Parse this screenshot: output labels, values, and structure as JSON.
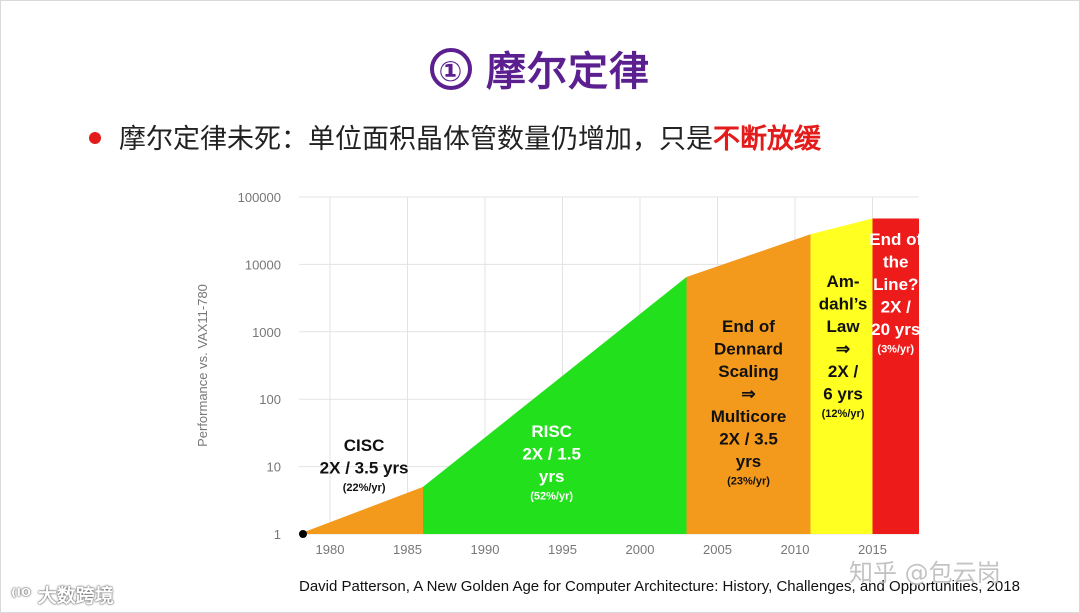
{
  "slide": {
    "number": "①",
    "title": "摩尔定律",
    "bullet_text": "摩尔定律未死：单位面积晶体管数量仍增加，只是",
    "bullet_highlight": "不断放缓",
    "source": "David Patterson, A New Golden Age for Computer Architecture: History, Challenges, and Opportunities, 2018",
    "watermark_left": "⁽ᴵᴼ 大数跨境",
    "watermark_right": "知乎 @包云岗"
  },
  "chart_data": {
    "type": "area",
    "ylabel": "Performance vs. VAX11-780",
    "yscale": "log",
    "ylim": [
      1,
      100000
    ],
    "xlim": [
      1978,
      2018
    ],
    "y_ticks": [
      {
        "value": 1,
        "label": "1"
      },
      {
        "value": 10,
        "label": "10"
      },
      {
        "value": 100,
        "label": "100"
      },
      {
        "value": 1000,
        "label": "1000"
      },
      {
        "value": 10000,
        "label": "10000"
      },
      {
        "value": 100000,
        "label": "100000"
      }
    ],
    "x_ticks": [
      {
        "value": 1980,
        "label": "1980"
      },
      {
        "value": 1985,
        "label": "1985"
      },
      {
        "value": 1990,
        "label": "1990"
      },
      {
        "value": 1995,
        "label": "1995"
      },
      {
        "value": 2000,
        "label": "2000"
      },
      {
        "value": 2005,
        "label": "2005"
      },
      {
        "value": 2010,
        "label": "2010"
      },
      {
        "value": 2015,
        "label": "2015"
      }
    ],
    "grid": true,
    "start_point": {
      "x": 1978,
      "y": 1
    },
    "segments": [
      {
        "name": "CISC",
        "x0": 1978,
        "x1": 1986,
        "y0": 1,
        "y1": 5,
        "color": "#f39a1d",
        "fill_top": false,
        "lines": [
          "CISC",
          "2X / 3.5 yrs"
        ],
        "rate": "(22%/yr)",
        "text_color": "#111111"
      },
      {
        "name": "RISC",
        "x0": 1986,
        "x1": 2003,
        "y0": 5,
        "y1": 6500,
        "color": "#22e01b",
        "fill_top": false,
        "lines": [
          "RISC",
          "2X / 1.5",
          "yrs"
        ],
        "rate": "(52%/yr)",
        "text_color": "#ffffff"
      },
      {
        "name": "End of Dennard Scaling",
        "x0": 2003,
        "x1": 2011,
        "y0": 6500,
        "y1": 28000,
        "color": "#f39a1d",
        "fill_top": false,
        "lines": [
          "End of",
          "Dennard",
          "Scaling",
          "⇒",
          "Multicore",
          "2X / 3.5",
          "yrs"
        ],
        "rate": "(23%/yr)",
        "text_color": "#111111"
      },
      {
        "name": "Amdahl's Law",
        "x0": 2011,
        "x1": 2015,
        "y0": 28000,
        "y1": 48000,
        "color": "#ffff22",
        "fill_top": false,
        "lines": [
          "Am-",
          "dahl’s",
          "Law",
          "⇒",
          "2X /",
          "6 yrs"
        ],
        "rate": "(12%/yr)",
        "text_color": "#111111"
      },
      {
        "name": "End of the Line",
        "x0": 2015,
        "x1": 2018,
        "y0": 48000,
        "y1": 48000,
        "color": "#ee1b1b",
        "fill_top": true,
        "lines": [
          "End of",
          "the",
          "Line?",
          "2X /",
          "20 yrs"
        ],
        "rate": "(3%/yr)",
        "text_color": "#ffffff"
      }
    ]
  }
}
